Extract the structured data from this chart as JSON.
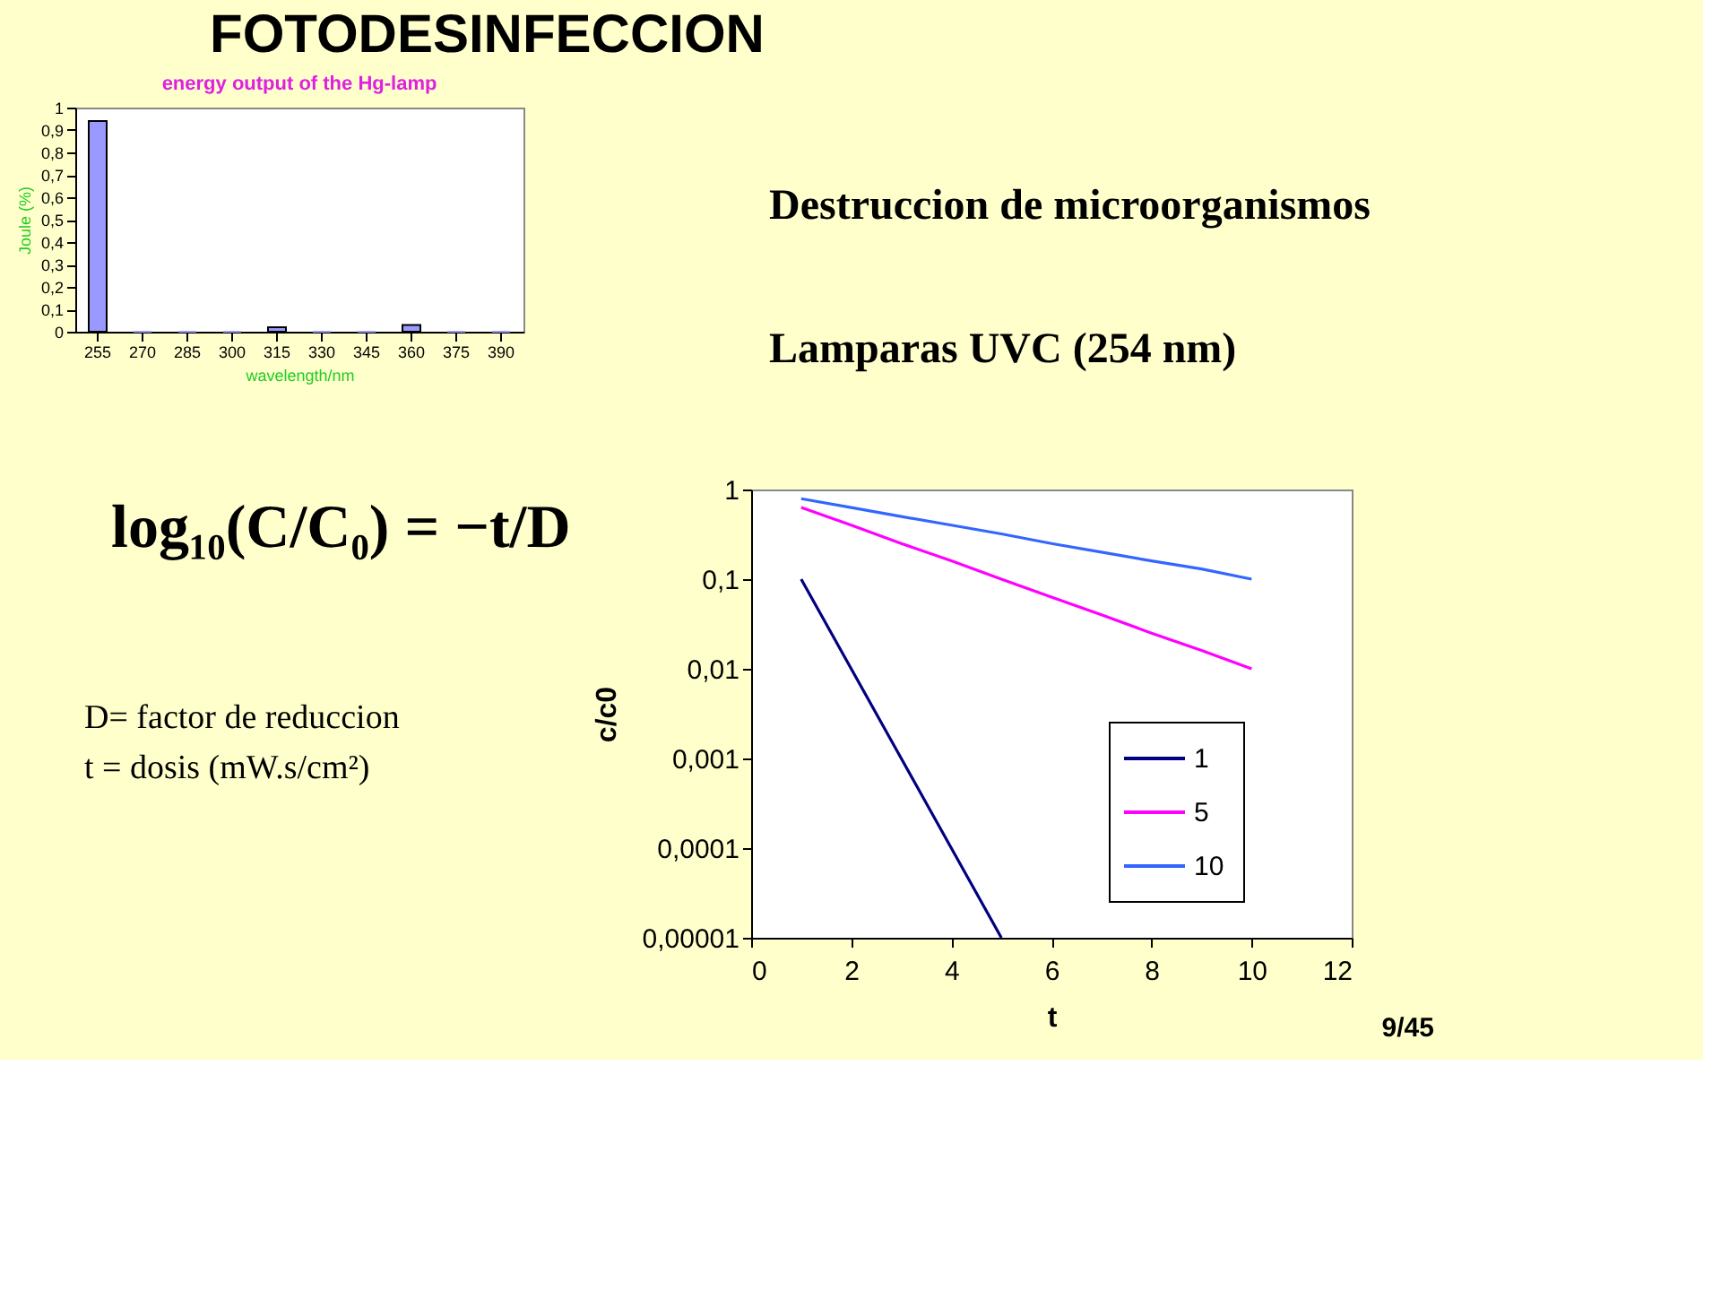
{
  "chart_data": [
    {
      "type": "bar",
      "title": "energy output of the Hg-lamp",
      "xlabel": "wavelength/nm",
      "ylabel": "Joule (%)",
      "categories": [
        "255",
        "270",
        "285",
        "300",
        "315",
        "330",
        "345",
        "360",
        "375",
        "390"
      ],
      "values": [
        0.94,
        0,
        0,
        0,
        0.02,
        0,
        0,
        0.03,
        0,
        0
      ],
      "color": "#9999ff",
      "ylim": [
        0,
        1
      ],
      "yticks": [
        0,
        {
          "value": 0.1,
          "label": "0,1"
        },
        {
          "value": 0.2,
          "label": "0,2"
        },
        {
          "value": 0.3,
          "label": "0,3"
        },
        {
          "value": 0.4,
          "label": "0,4"
        },
        {
          "value": 0.5,
          "label": "0,5"
        },
        {
          "value": 0.6,
          "label": "0,6"
        },
        {
          "value": 0.7,
          "label": "0,7"
        },
        {
          "value": 0.8,
          "label": "0,8"
        },
        {
          "value": 0.9,
          "label": "0,9"
        },
        1
      ],
      "grid": false,
      "legend": false
    },
    {
      "type": "line",
      "xlabel": "t",
      "ylabel": "c/c0",
      "log": "y",
      "x": [
        1,
        2,
        3,
        4,
        5,
        6,
        7,
        8,
        9,
        10
      ],
      "series": [
        {
          "name": "1",
          "color": "#000080",
          "values": [
            0.1,
            0.01,
            0.001,
            0.0001,
            1e-05,
            null,
            null,
            null,
            null,
            null
          ]
        },
        {
          "name": "5",
          "color": "#ff00ff",
          "values": [
            0.63,
            0.4,
            0.25,
            0.16,
            0.1,
            0.063,
            0.04,
            0.025,
            0.016,
            0.01
          ]
        },
        {
          "name": "10",
          "color": "#3366ff",
          "values": [
            0.79,
            0.63,
            0.5,
            0.4,
            0.32,
            0.25,
            0.2,
            0.16,
            0.13,
            0.1
          ]
        }
      ],
      "xlim": [
        0,
        12
      ],
      "xticks": [
        0,
        2,
        4,
        6,
        8,
        10,
        12
      ],
      "ylim": [
        1e-05,
        1
      ],
      "yticks": [
        {
          "value": 1e-05,
          "label": "0,00001"
        },
        {
          "value": 0.0001,
          "label": "0,0001"
        },
        {
          "value": 0.001,
          "label": "0,001"
        },
        {
          "value": 0.01,
          "label": "0,01"
        },
        {
          "value": 0.1,
          "label": "0,1"
        },
        1
      ],
      "grid": false,
      "legend": "bottom right",
      "marker": "none",
      "line_style": "solid",
      "annotations": [
        "FOTODESINFECCION",
        "Destruccion de microorganismos",
        "Lamparas UVC (254 nm)",
        "log₁₀(C/C₀) = −t/D",
        "D= factor de reduccion",
        "t = dosis (mW.s/cm²)",
        "9/45"
      ]
    }
  ]
}
